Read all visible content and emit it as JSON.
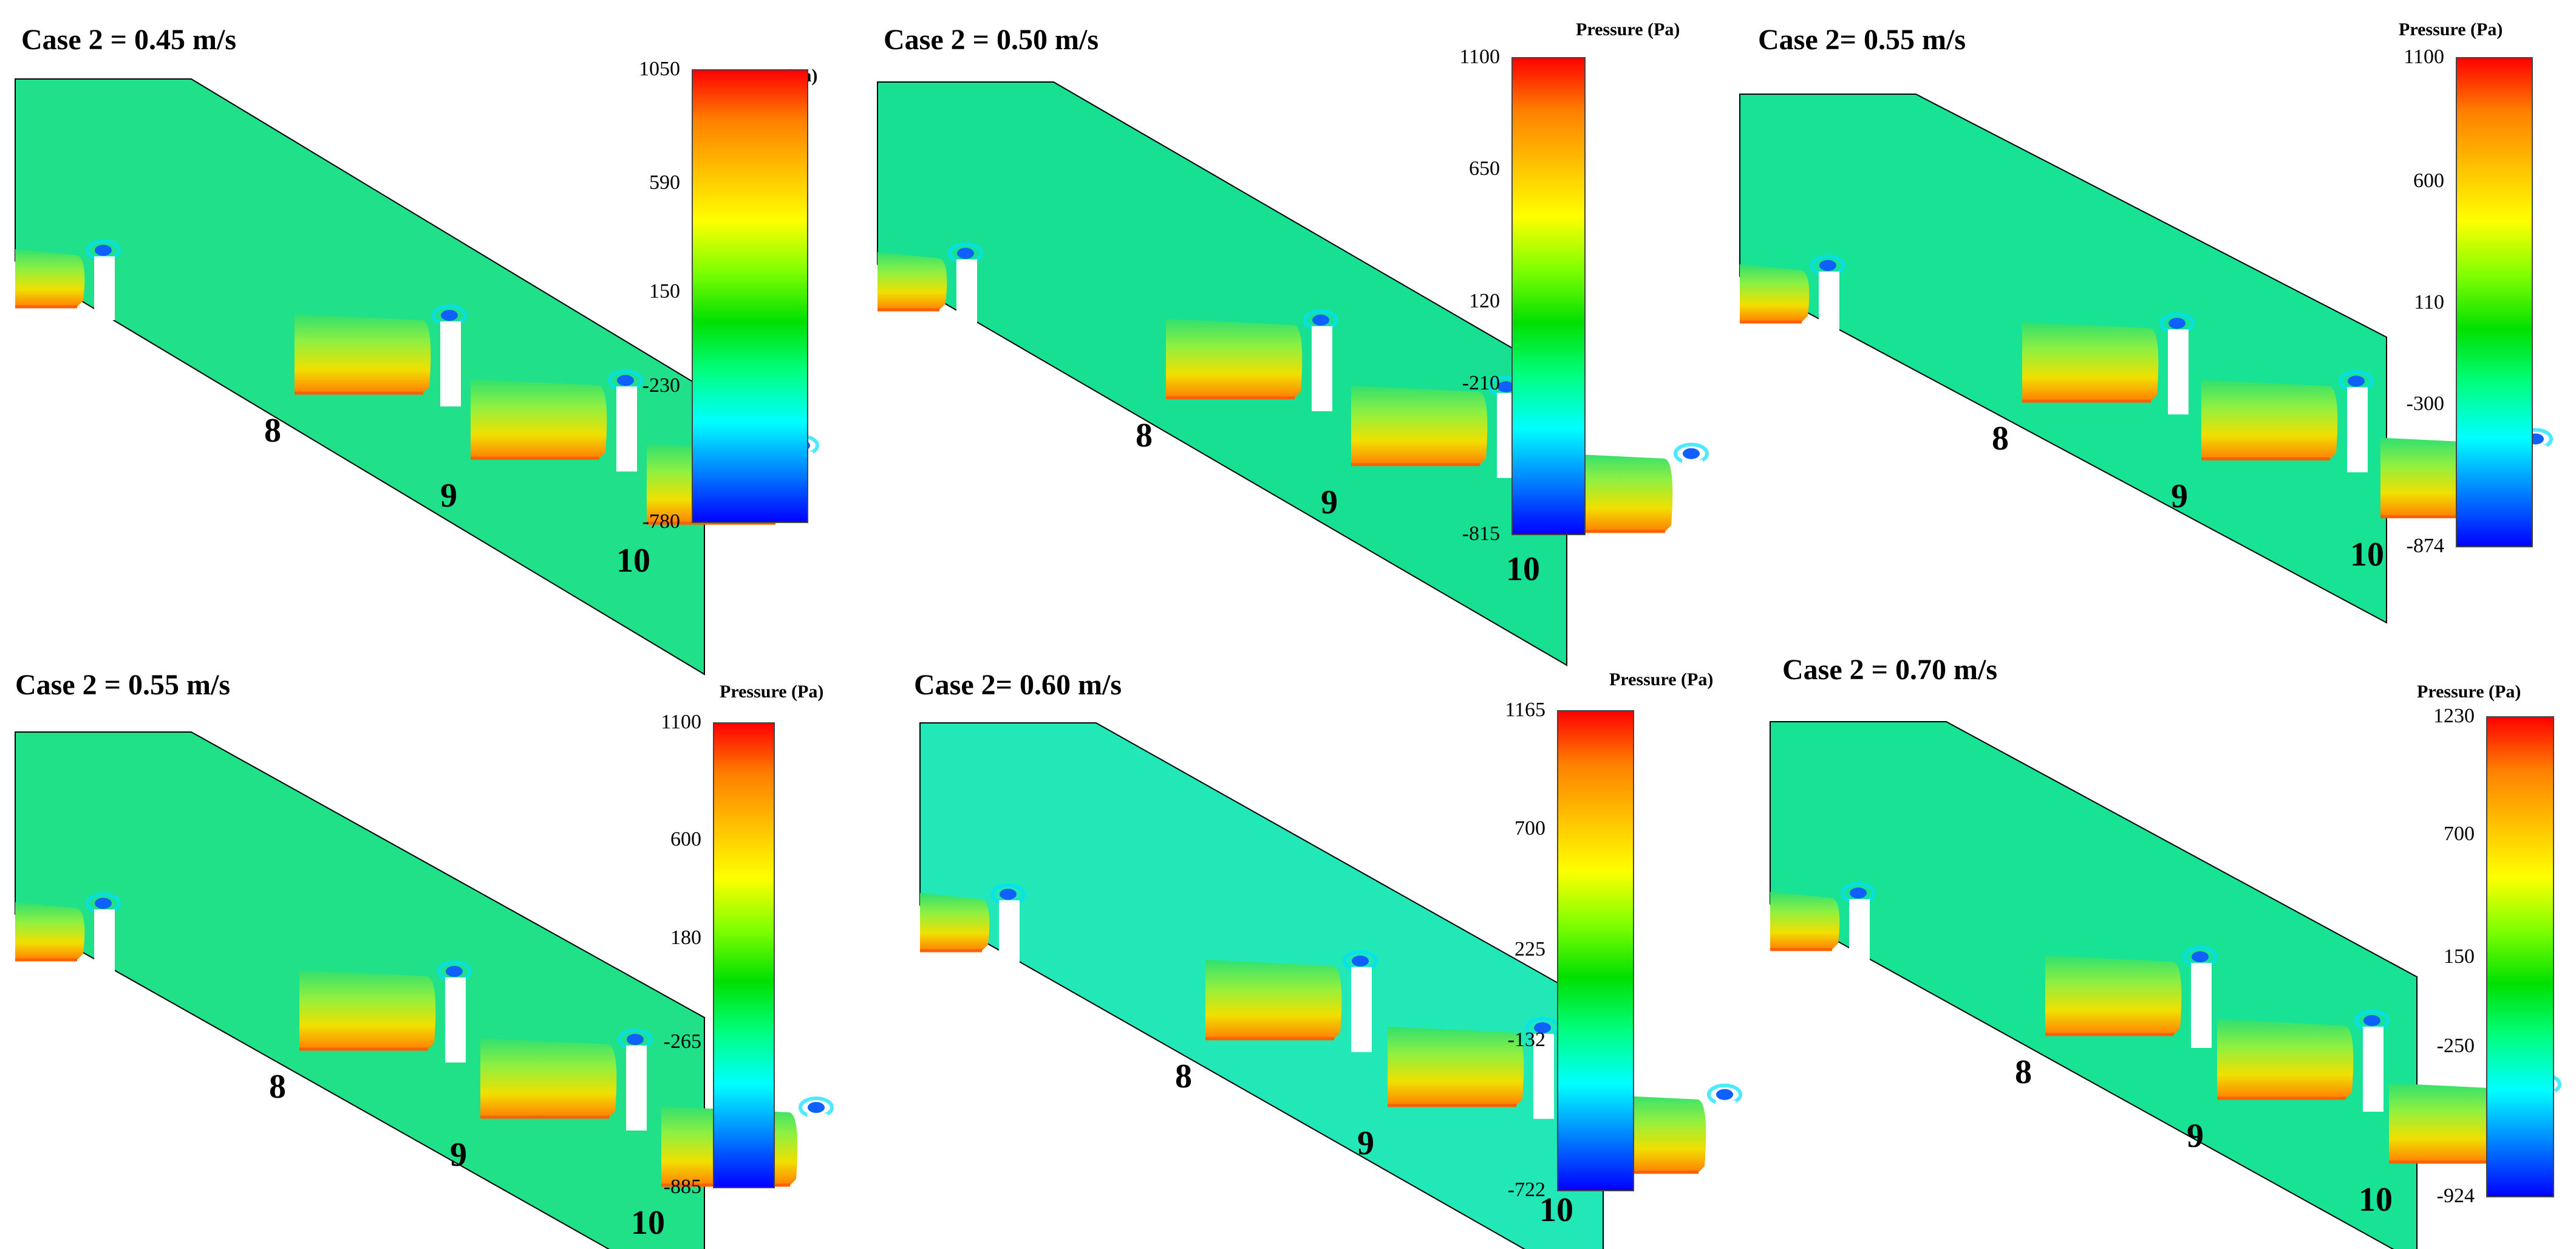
{
  "figure": {
    "legend_title": "Pressure (Pa)",
    "step_labels": [
      "8",
      "9",
      "10"
    ],
    "colormap": [
      "#0000ff",
      "#0080ff",
      "#00ffff",
      "#00ff80",
      "#00e000",
      "#80ff00",
      "#ffff00",
      "#ffc000",
      "#ff8000",
      "#ff0000"
    ],
    "panels": [
      {
        "title": "Case 2 = 0.45 m/s",
        "max": 1050,
        "min": -780,
        "ticks": [
          "1050",
          "590",
          "150",
          "-230",
          "-780"
        ],
        "tick_values": [
          1050,
          590,
          150,
          -230,
          -780
        ],
        "background": "#20e08a"
      },
      {
        "title": "Case 2 = 0.50 m/s",
        "max": 1100,
        "min": -815,
        "ticks": [
          "1100",
          "650",
          "120",
          "-210",
          "-815"
        ],
        "tick_values": [
          1100,
          650,
          120,
          -210,
          -815
        ],
        "background": "#18e093"
      },
      {
        "title": "Case 2= 0.55 m/s",
        "max": 1100,
        "min": -874,
        "ticks": [
          "1100",
          "600",
          "110",
          "-300",
          "-874"
        ],
        "tick_values": [
          1100,
          600,
          110,
          -300,
          -874
        ],
        "background": "#18e293"
      },
      {
        "title": "Case 2 = 0.55 m/s",
        "max": 1100,
        "min": -885,
        "ticks": [
          "1100",
          "600",
          "180",
          "-265",
          "-885"
        ],
        "tick_values": [
          1100,
          600,
          180,
          -265,
          -885
        ],
        "background": "#20e088"
      },
      {
        "title": "Case 2= 0.60 m/s",
        "max": 1165,
        "min": -722,
        "ticks": [
          "1165",
          "700",
          "225",
          "-132",
          "-722"
        ],
        "tick_values": [
          1165,
          700,
          225,
          -132,
          -722
        ],
        "background": "#22e8b8"
      },
      {
        "title": "Case 2 = 0.70 m/s",
        "max": 1230,
        "min": -924,
        "ticks": [
          "1230",
          "700",
          "150",
          "-250",
          "-924"
        ],
        "tick_values": [
          1230,
          700,
          150,
          -250,
          -924
        ],
        "background": "#18e293"
      }
    ]
  }
}
